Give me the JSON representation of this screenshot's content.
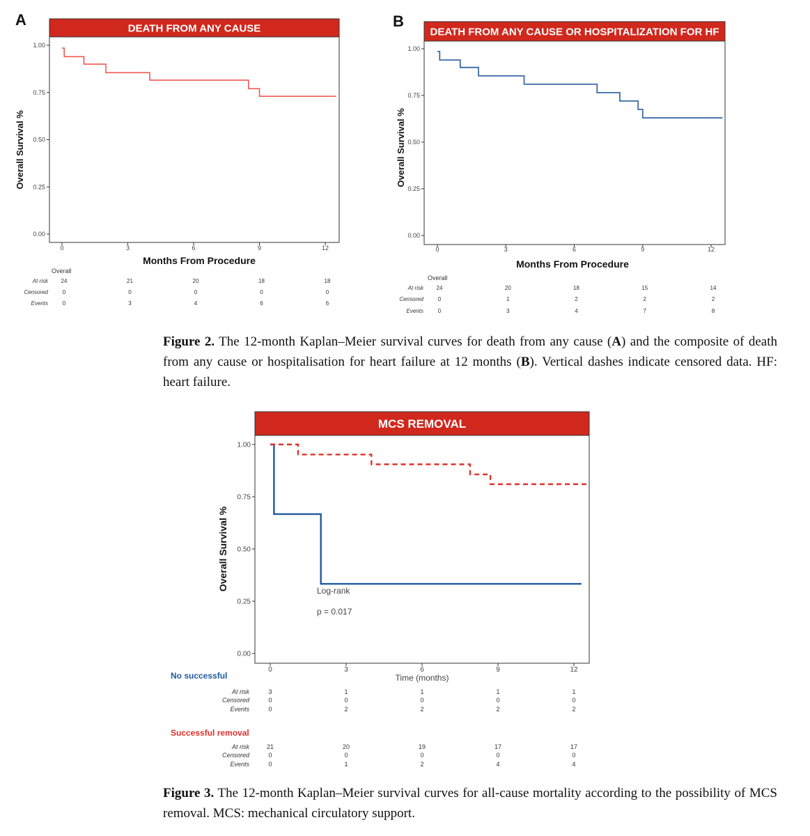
{
  "colors": {
    "banner": "#d0281d",
    "curveA": "#ee5a52",
    "curveB": "#3a69a8",
    "blue": "#1f5aa0",
    "red": "#e0302a"
  },
  "figure2": {
    "caption": {
      "label": "Figure 2.",
      "t1": " The 12-month Kaplan–Meier survival curves for death from any cause (",
      "b1": "A",
      "t2": ") and the composite of death from any cause or hospitalisation for heart failure at 12 months (",
      "b2": "B",
      "t3": "). Vertical dashes indicate censored data. HF: heart failure."
    }
  },
  "figure3": {
    "caption": {
      "label": "Figure 3.",
      "text": " The 12-month Kaplan–Meier survival curves for all-cause mortality according to the possibility of MCS removal. MCS: mechanical circulatory support."
    }
  },
  "chart_data": [
    {
      "type": "line",
      "panel_letter": "A",
      "title": "DEATH FROM ANY CAUSE",
      "xlabel": "Months From Procedure",
      "ylabel": "Overall Survival %",
      "xlim": [
        0,
        12
      ],
      "ylim": [
        0,
        1
      ],
      "xticks": [
        "0",
        "3",
        "6",
        "9",
        "12"
      ],
      "yticks": [
        "0.00",
        "0.25",
        "0.50",
        "0.75",
        "1.00"
      ],
      "series": [
        {
          "name": "Overall",
          "step": true,
          "x": [
            0,
            0.1,
            1,
            2,
            4,
            8.5,
            9,
            12.5
          ],
          "y": [
            0.985,
            0.94,
            0.9,
            0.855,
            0.815,
            0.77,
            0.73,
            0.73
          ]
        }
      ],
      "risk_table": {
        "group": "Overall",
        "rows": [
          {
            "label": "At risk",
            "values": [
              "24",
              "21",
              "20",
              "18",
              "18"
            ]
          },
          {
            "label": "Censored",
            "values": [
              "0",
              "0",
              "0",
              "0",
              "0"
            ]
          },
          {
            "label": "Events",
            "values": [
              "0",
              "3",
              "4",
              "6",
              "6"
            ]
          }
        ]
      }
    },
    {
      "type": "line",
      "panel_letter": "B",
      "title": "DEATH FROM ANY CAUSE OR HOSPITALIZATION FOR HF",
      "xlabel": "Months From Procedure",
      "ylabel": "Overall Survival %",
      "xlim": [
        0,
        12
      ],
      "ylim": [
        0,
        1
      ],
      "xticks": [
        "0",
        "3",
        "6",
        "9",
        "12"
      ],
      "yticks": [
        "0.00",
        "0.25",
        "0.50",
        "0.75",
        "1.00"
      ],
      "series": [
        {
          "name": "Overall",
          "step": true,
          "x": [
            0,
            0.1,
            1,
            1.8,
            3.8,
            7,
            8,
            8.8,
            9,
            12.5
          ],
          "y": [
            0.985,
            0.94,
            0.9,
            0.855,
            0.81,
            0.765,
            0.72,
            0.675,
            0.63,
            0.63
          ]
        }
      ],
      "risk_table": {
        "group": "Overall",
        "rows": [
          {
            "label": "At risk",
            "values": [
              "24",
              "20",
              "18",
              "15",
              "14"
            ]
          },
          {
            "label": "Censored",
            "values": [
              "0",
              "1",
              "2",
              "2",
              "2"
            ]
          },
          {
            "label": "Events",
            "values": [
              "0",
              "3",
              "4",
              "7",
              "8"
            ]
          }
        ]
      }
    },
    {
      "type": "line",
      "title": "MCS REMOVAL",
      "xlabel": "Time (months)",
      "ylabel": "Overall Survival %",
      "xlim": [
        0,
        12
      ],
      "ylim": [
        0,
        1
      ],
      "xticks": [
        "0",
        "3",
        "6",
        "9",
        "12"
      ],
      "yticks": [
        "0.00",
        "0.25",
        "0.50",
        "0.75",
        "1.00"
      ],
      "annotation": {
        "line1": "Log-rank",
        "line2": "p = 0.017"
      },
      "series": [
        {
          "name": "No successful",
          "step": true,
          "dashed": false,
          "x": [
            0,
            0.15,
            2,
            12.3
          ],
          "y": [
            1.0,
            0.667,
            0.333,
            0.333
          ]
        },
        {
          "name": "Successful removal",
          "step": true,
          "dashed": true,
          "x": [
            0,
            1.1,
            4,
            7.9,
            8.7,
            12.6
          ],
          "y": [
            1.0,
            0.952,
            0.905,
            0.857,
            0.81,
            0.81
          ]
        }
      ],
      "risk_tables": [
        {
          "group": "No successful",
          "rows": [
            {
              "label": "At risk",
              "values": [
                "3",
                "1",
                "1",
                "1",
                "1"
              ]
            },
            {
              "label": "Censored",
              "values": [
                "0",
                "0",
                "0",
                "0",
                "0"
              ]
            },
            {
              "label": "Events",
              "values": [
                "0",
                "2",
                "2",
                "2",
                "2"
              ]
            }
          ]
        },
        {
          "group": "Successful removal",
          "rows": [
            {
              "label": "At risk",
              "values": [
                "21",
                "20",
                "19",
                "17",
                "17"
              ]
            },
            {
              "label": "Censored",
              "values": [
                "0",
                "0",
                "0",
                "0",
                "0"
              ]
            },
            {
              "label": "Events",
              "values": [
                "0",
                "1",
                "2",
                "4",
                "4"
              ]
            }
          ]
        }
      ]
    }
  ]
}
